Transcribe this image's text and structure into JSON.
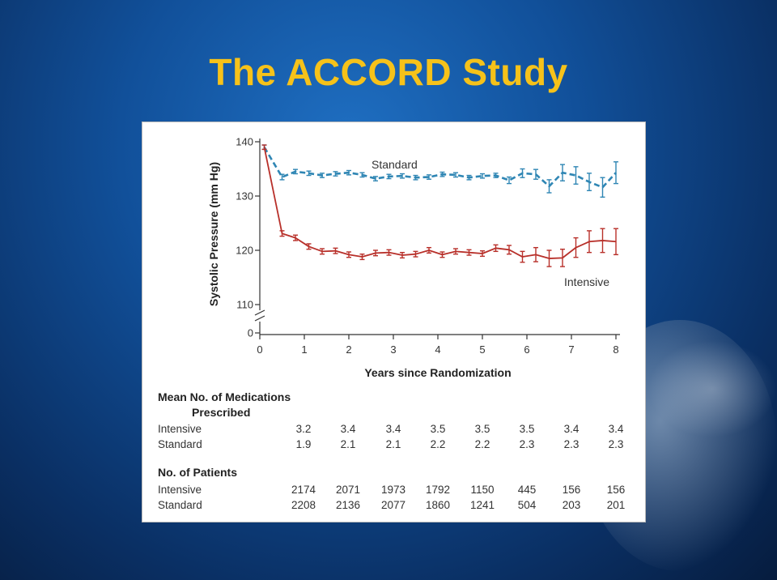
{
  "title": "The ACCORD Study",
  "colors": {
    "standard": "#2f86b4",
    "intensive": "#b8302a",
    "title": "#f6c21a"
  },
  "chart_data": {
    "type": "line",
    "ylabel": "Systolic Pressure (mm Hg)",
    "xlabel": "Years since Randomization",
    "x_ticks": [
      "0",
      "1",
      "2",
      "3",
      "4",
      "5",
      "6",
      "7",
      "8"
    ],
    "y_ticks": [
      {
        "value": 140,
        "label": "140"
      },
      {
        "value": 130,
        "label": "130"
      },
      {
        "value": 120,
        "label": "120"
      },
      {
        "value": 110,
        "label": "110"
      },
      {
        "value": 0,
        "label": "0"
      }
    ],
    "xlim": [
      0,
      8
    ],
    "ylim": [
      105,
      141
    ],
    "axis_break": true,
    "x": [
      0.1,
      0.5,
      0.8,
      1.1,
      1.4,
      1.7,
      2.0,
      2.3,
      2.6,
      2.9,
      3.2,
      3.5,
      3.8,
      4.1,
      4.4,
      4.7,
      5.0,
      5.3,
      5.6,
      5.9,
      6.2,
      6.5,
      6.8,
      7.1,
      7.4,
      7.7,
      8.0
    ],
    "series": [
      {
        "name": "Standard",
        "style": "dashed",
        "values": [
          139.0,
          133.5,
          134.5,
          134.2,
          133.8,
          134.1,
          134.3,
          133.9,
          133.2,
          133.6,
          133.7,
          133.4,
          133.5,
          134.0,
          133.9,
          133.4,
          133.7,
          133.8,
          132.9,
          134.2,
          134.0,
          131.8,
          134.3,
          133.8,
          132.6,
          131.6,
          134.3
        ],
        "errors": [
          0.4,
          0.5,
          0.4,
          0.4,
          0.4,
          0.4,
          0.4,
          0.4,
          0.4,
          0.4,
          0.4,
          0.4,
          0.4,
          0.4,
          0.4,
          0.4,
          0.4,
          0.4,
          0.6,
          0.8,
          0.9,
          1.2,
          1.5,
          1.6,
          1.6,
          1.8,
          2.0
        ]
      },
      {
        "name": "Intensive",
        "style": "solid",
        "values": [
          139.0,
          123.1,
          122.3,
          120.7,
          119.8,
          119.9,
          119.2,
          118.8,
          119.5,
          119.6,
          119.1,
          119.3,
          120.0,
          119.2,
          119.8,
          119.6,
          119.4,
          120.4,
          120.1,
          118.8,
          119.2,
          118.5,
          118.6,
          120.5,
          121.6,
          121.8,
          121.6
        ],
        "errors": [
          0.4,
          0.5,
          0.5,
          0.5,
          0.5,
          0.5,
          0.5,
          0.5,
          0.5,
          0.5,
          0.5,
          0.5,
          0.5,
          0.5,
          0.5,
          0.5,
          0.5,
          0.6,
          0.8,
          1.0,
          1.3,
          1.5,
          1.6,
          1.8,
          2.0,
          2.2,
          2.4
        ]
      }
    ]
  },
  "table": {
    "medications": {
      "title_line1": "Mean No. of Medications",
      "title_line2": "Prescribed",
      "rows": [
        {
          "label": "Intensive",
          "values": [
            "3.2",
            "3.4",
            "3.4",
            "3.5",
            "3.5",
            "3.5",
            "3.4",
            "3.4"
          ]
        },
        {
          "label": "Standard",
          "values": [
            "1.9",
            "2.1",
            "2.1",
            "2.2",
            "2.2",
            "2.3",
            "2.3",
            "2.3"
          ]
        }
      ]
    },
    "patients": {
      "title": "No. of Patients",
      "rows": [
        {
          "label": "Intensive",
          "values": [
            "2174",
            "2071",
            "1973",
            "1792",
            "1150",
            "445",
            "156",
            "156"
          ]
        },
        {
          "label": "Standard",
          "values": [
            "2208",
            "2136",
            "2077",
            "1860",
            "1241",
            "504",
            "203",
            "201"
          ]
        }
      ]
    }
  }
}
